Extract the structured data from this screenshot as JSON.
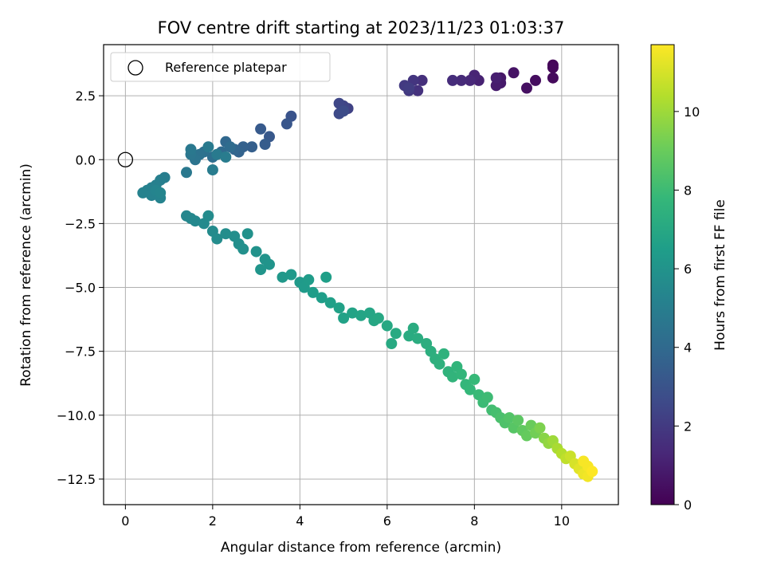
{
  "chart_data": {
    "type": "scatter",
    "title": "FOV centre drift starting at 2023/11/23 01:03:37",
    "xlabel": "Angular distance from reference (arcmin)",
    "ylabel": "Rotation from reference (arcmin)",
    "xlim": [
      -0.5,
      11.3
    ],
    "ylim": [
      -13.5,
      4.5
    ],
    "xticks": [
      0,
      2,
      4,
      6,
      8,
      10
    ],
    "xtick_labels": [
      "0",
      "2",
      "4",
      "6",
      "8",
      "10"
    ],
    "yticks": [
      2.5,
      0.0,
      -2.5,
      -5.0,
      -7.5,
      -10.0,
      -12.5
    ],
    "ytick_labels": [
      "2.5",
      "0.0",
      "−2.5",
      "−5.0",
      "−7.5",
      "−10.0",
      "−12.5"
    ],
    "grid": true,
    "legend": {
      "position": "top-left",
      "entries": [
        {
          "label": "Reference platepar",
          "marker": "open-circle"
        }
      ]
    },
    "reference_point": {
      "x": 0,
      "y": 0
    },
    "colorbar": {
      "label": "Hours from first FF file",
      "range": [
        0,
        11.7
      ],
      "ticks": [
        0,
        2,
        4,
        6,
        8,
        10
      ],
      "tick_labels": [
        "0",
        "2",
        "4",
        "6",
        "8",
        "10"
      ],
      "colormap": "viridis"
    },
    "colormap_stops": [
      "#440154",
      "#482878",
      "#3e4a89",
      "#31688e",
      "#26828e",
      "#1f9e89",
      "#35b779",
      "#6dcd59",
      "#b4de2c",
      "#fde725"
    ],
    "series": [
      {
        "points": [
          [
            9.8,
            3.7,
            0.1
          ],
          [
            9.8,
            3.6,
            0.2
          ],
          [
            9.8,
            3.2,
            0.3
          ],
          [
            9.4,
            3.1,
            0.4
          ],
          [
            9.2,
            2.8,
            0.5
          ],
          [
            8.9,
            3.4,
            0.6
          ],
          [
            8.6,
            3.2,
            0.7
          ],
          [
            8.6,
            3.0,
            0.8
          ],
          [
            8.5,
            2.9,
            0.9
          ],
          [
            8.5,
            3.2,
            1.0
          ],
          [
            8.1,
            3.1,
            1.1
          ],
          [
            8.0,
            3.3,
            1.2
          ],
          [
            7.9,
            3.1,
            1.3
          ],
          [
            7.7,
            3.1,
            1.4
          ],
          [
            7.5,
            3.1,
            1.5
          ],
          [
            6.8,
            3.1,
            1.6
          ],
          [
            6.7,
            2.7,
            1.7
          ],
          [
            6.6,
            3.1,
            1.8
          ],
          [
            6.5,
            2.7,
            1.9
          ],
          [
            6.4,
            2.9,
            2.0
          ],
          [
            6.5,
            2.8,
            2.1
          ],
          [
            5.1,
            2.0,
            2.3
          ],
          [
            5.0,
            2.1,
            2.4
          ],
          [
            4.9,
            2.2,
            2.5
          ],
          [
            4.9,
            1.8,
            2.6
          ],
          [
            5.0,
            1.9,
            2.7
          ],
          [
            3.8,
            1.7,
            3.0
          ],
          [
            3.7,
            1.4,
            3.1
          ],
          [
            3.3,
            0.9,
            3.2
          ],
          [
            3.1,
            1.2,
            3.3
          ],
          [
            3.2,
            0.6,
            3.4
          ],
          [
            2.9,
            0.5,
            3.5
          ],
          [
            2.7,
            0.5,
            3.6
          ],
          [
            2.6,
            0.3,
            3.7
          ],
          [
            2.5,
            0.4,
            3.8
          ],
          [
            2.3,
            0.7,
            3.9
          ],
          [
            2.2,
            0.3,
            4.0
          ],
          [
            2.4,
            0.5,
            4.1
          ],
          [
            2.0,
            0.1,
            4.2
          ],
          [
            1.8,
            0.3,
            4.3
          ],
          [
            1.7,
            0.2,
            4.4
          ],
          [
            1.6,
            0.0,
            4.5
          ],
          [
            1.5,
            0.2,
            4.6
          ],
          [
            1.4,
            -0.5,
            4.7
          ],
          [
            1.5,
            0.4,
            4.7
          ],
          [
            2.1,
            0.2,
            4.8
          ],
          [
            1.9,
            0.5,
            4.8
          ],
          [
            2.3,
            0.1,
            4.9
          ],
          [
            2.0,
            -0.4,
            4.9
          ],
          [
            0.9,
            -0.7,
            5.0
          ],
          [
            0.8,
            -0.8,
            5.05
          ],
          [
            0.7,
            -1.0,
            5.1
          ],
          [
            0.6,
            -1.1,
            5.1
          ],
          [
            0.5,
            -1.2,
            5.15
          ],
          [
            0.4,
            -1.3,
            5.2
          ],
          [
            0.6,
            -1.4,
            5.2
          ],
          [
            0.8,
            -1.5,
            5.25
          ],
          [
            0.7,
            -1.2,
            5.3
          ],
          [
            0.8,
            -1.3,
            5.35
          ],
          [
            1.4,
            -2.2,
            5.4
          ],
          [
            1.5,
            -2.3,
            5.45
          ],
          [
            1.6,
            -2.4,
            5.5
          ],
          [
            1.8,
            -2.5,
            5.55
          ],
          [
            1.9,
            -2.2,
            5.6
          ],
          [
            2.0,
            -2.8,
            5.6
          ],
          [
            2.1,
            -3.1,
            5.65
          ],
          [
            2.3,
            -2.9,
            5.7
          ],
          [
            2.5,
            -3.0,
            5.75
          ],
          [
            2.6,
            -3.3,
            5.8
          ],
          [
            2.7,
            -3.5,
            5.85
          ],
          [
            2.8,
            -2.9,
            5.9
          ],
          [
            3.0,
            -3.6,
            5.95
          ],
          [
            3.2,
            -3.9,
            6.0
          ],
          [
            3.3,
            -4.1,
            6.05
          ],
          [
            3.1,
            -4.3,
            6.1
          ],
          [
            3.6,
            -4.6,
            6.2
          ],
          [
            3.8,
            -4.5,
            6.25
          ],
          [
            4.0,
            -4.8,
            6.3
          ],
          [
            4.1,
            -5.0,
            6.35
          ],
          [
            4.2,
            -4.7,
            6.4
          ],
          [
            4.3,
            -5.2,
            6.45
          ],
          [
            4.5,
            -5.4,
            6.5
          ],
          [
            4.6,
            -4.6,
            6.55
          ],
          [
            4.7,
            -5.6,
            6.6
          ],
          [
            4.9,
            -5.8,
            6.65
          ],
          [
            5.0,
            -6.2,
            6.7
          ],
          [
            5.2,
            -6.0,
            6.75
          ],
          [
            5.4,
            -6.1,
            6.8
          ],
          [
            5.6,
            -6.0,
            6.85
          ],
          [
            5.7,
            -6.3,
            6.9
          ],
          [
            5.8,
            -6.2,
            6.95
          ],
          [
            6.0,
            -6.5,
            7.0
          ],
          [
            6.1,
            -7.2,
            7.05
          ],
          [
            6.2,
            -6.8,
            7.1
          ],
          [
            6.5,
            -6.9,
            7.15
          ],
          [
            6.6,
            -6.6,
            7.2
          ],
          [
            6.7,
            -7.0,
            7.25
          ],
          [
            6.9,
            -7.2,
            7.3
          ],
          [
            7.0,
            -7.5,
            7.35
          ],
          [
            7.1,
            -7.8,
            7.4
          ],
          [
            7.2,
            -8.0,
            7.45
          ],
          [
            7.3,
            -7.6,
            7.5
          ],
          [
            7.4,
            -8.3,
            7.55
          ],
          [
            7.5,
            -8.5,
            7.6
          ],
          [
            7.6,
            -8.1,
            7.65
          ],
          [
            7.7,
            -8.4,
            7.7
          ],
          [
            7.8,
            -8.8,
            7.75
          ],
          [
            7.9,
            -9.0,
            7.8
          ],
          [
            8.0,
            -8.6,
            7.85
          ],
          [
            8.1,
            -9.2,
            7.9
          ],
          [
            8.2,
            -9.5,
            7.95
          ],
          [
            8.3,
            -9.3,
            8.0
          ],
          [
            8.4,
            -9.8,
            8.1
          ],
          [
            8.5,
            -9.9,
            8.2
          ],
          [
            8.6,
            -10.1,
            8.3
          ],
          [
            8.7,
            -10.3,
            8.4
          ],
          [
            8.8,
            -10.1,
            8.5
          ],
          [
            8.9,
            -10.5,
            8.6
          ],
          [
            9.0,
            -10.2,
            8.7
          ],
          [
            9.1,
            -10.6,
            8.8
          ],
          [
            9.2,
            -10.8,
            8.9
          ],
          [
            9.3,
            -10.4,
            9.0
          ],
          [
            9.4,
            -10.7,
            9.2
          ],
          [
            9.5,
            -10.5,
            9.4
          ],
          [
            9.6,
            -10.9,
            9.6
          ],
          [
            9.7,
            -11.1,
            9.8
          ],
          [
            9.8,
            -11.0,
            10.0
          ],
          [
            9.9,
            -11.3,
            10.2
          ],
          [
            10.0,
            -11.5,
            10.4
          ],
          [
            10.1,
            -11.7,
            10.6
          ],
          [
            10.2,
            -11.6,
            10.8
          ],
          [
            10.3,
            -11.9,
            11.0
          ],
          [
            10.4,
            -12.1,
            11.2
          ],
          [
            10.5,
            -12.3,
            11.4
          ],
          [
            10.6,
            -12.4,
            11.5
          ],
          [
            10.6,
            -12.0,
            11.6
          ],
          [
            10.5,
            -11.8,
            11.6
          ],
          [
            10.7,
            -12.2,
            11.7
          ]
        ]
      }
    ]
  }
}
